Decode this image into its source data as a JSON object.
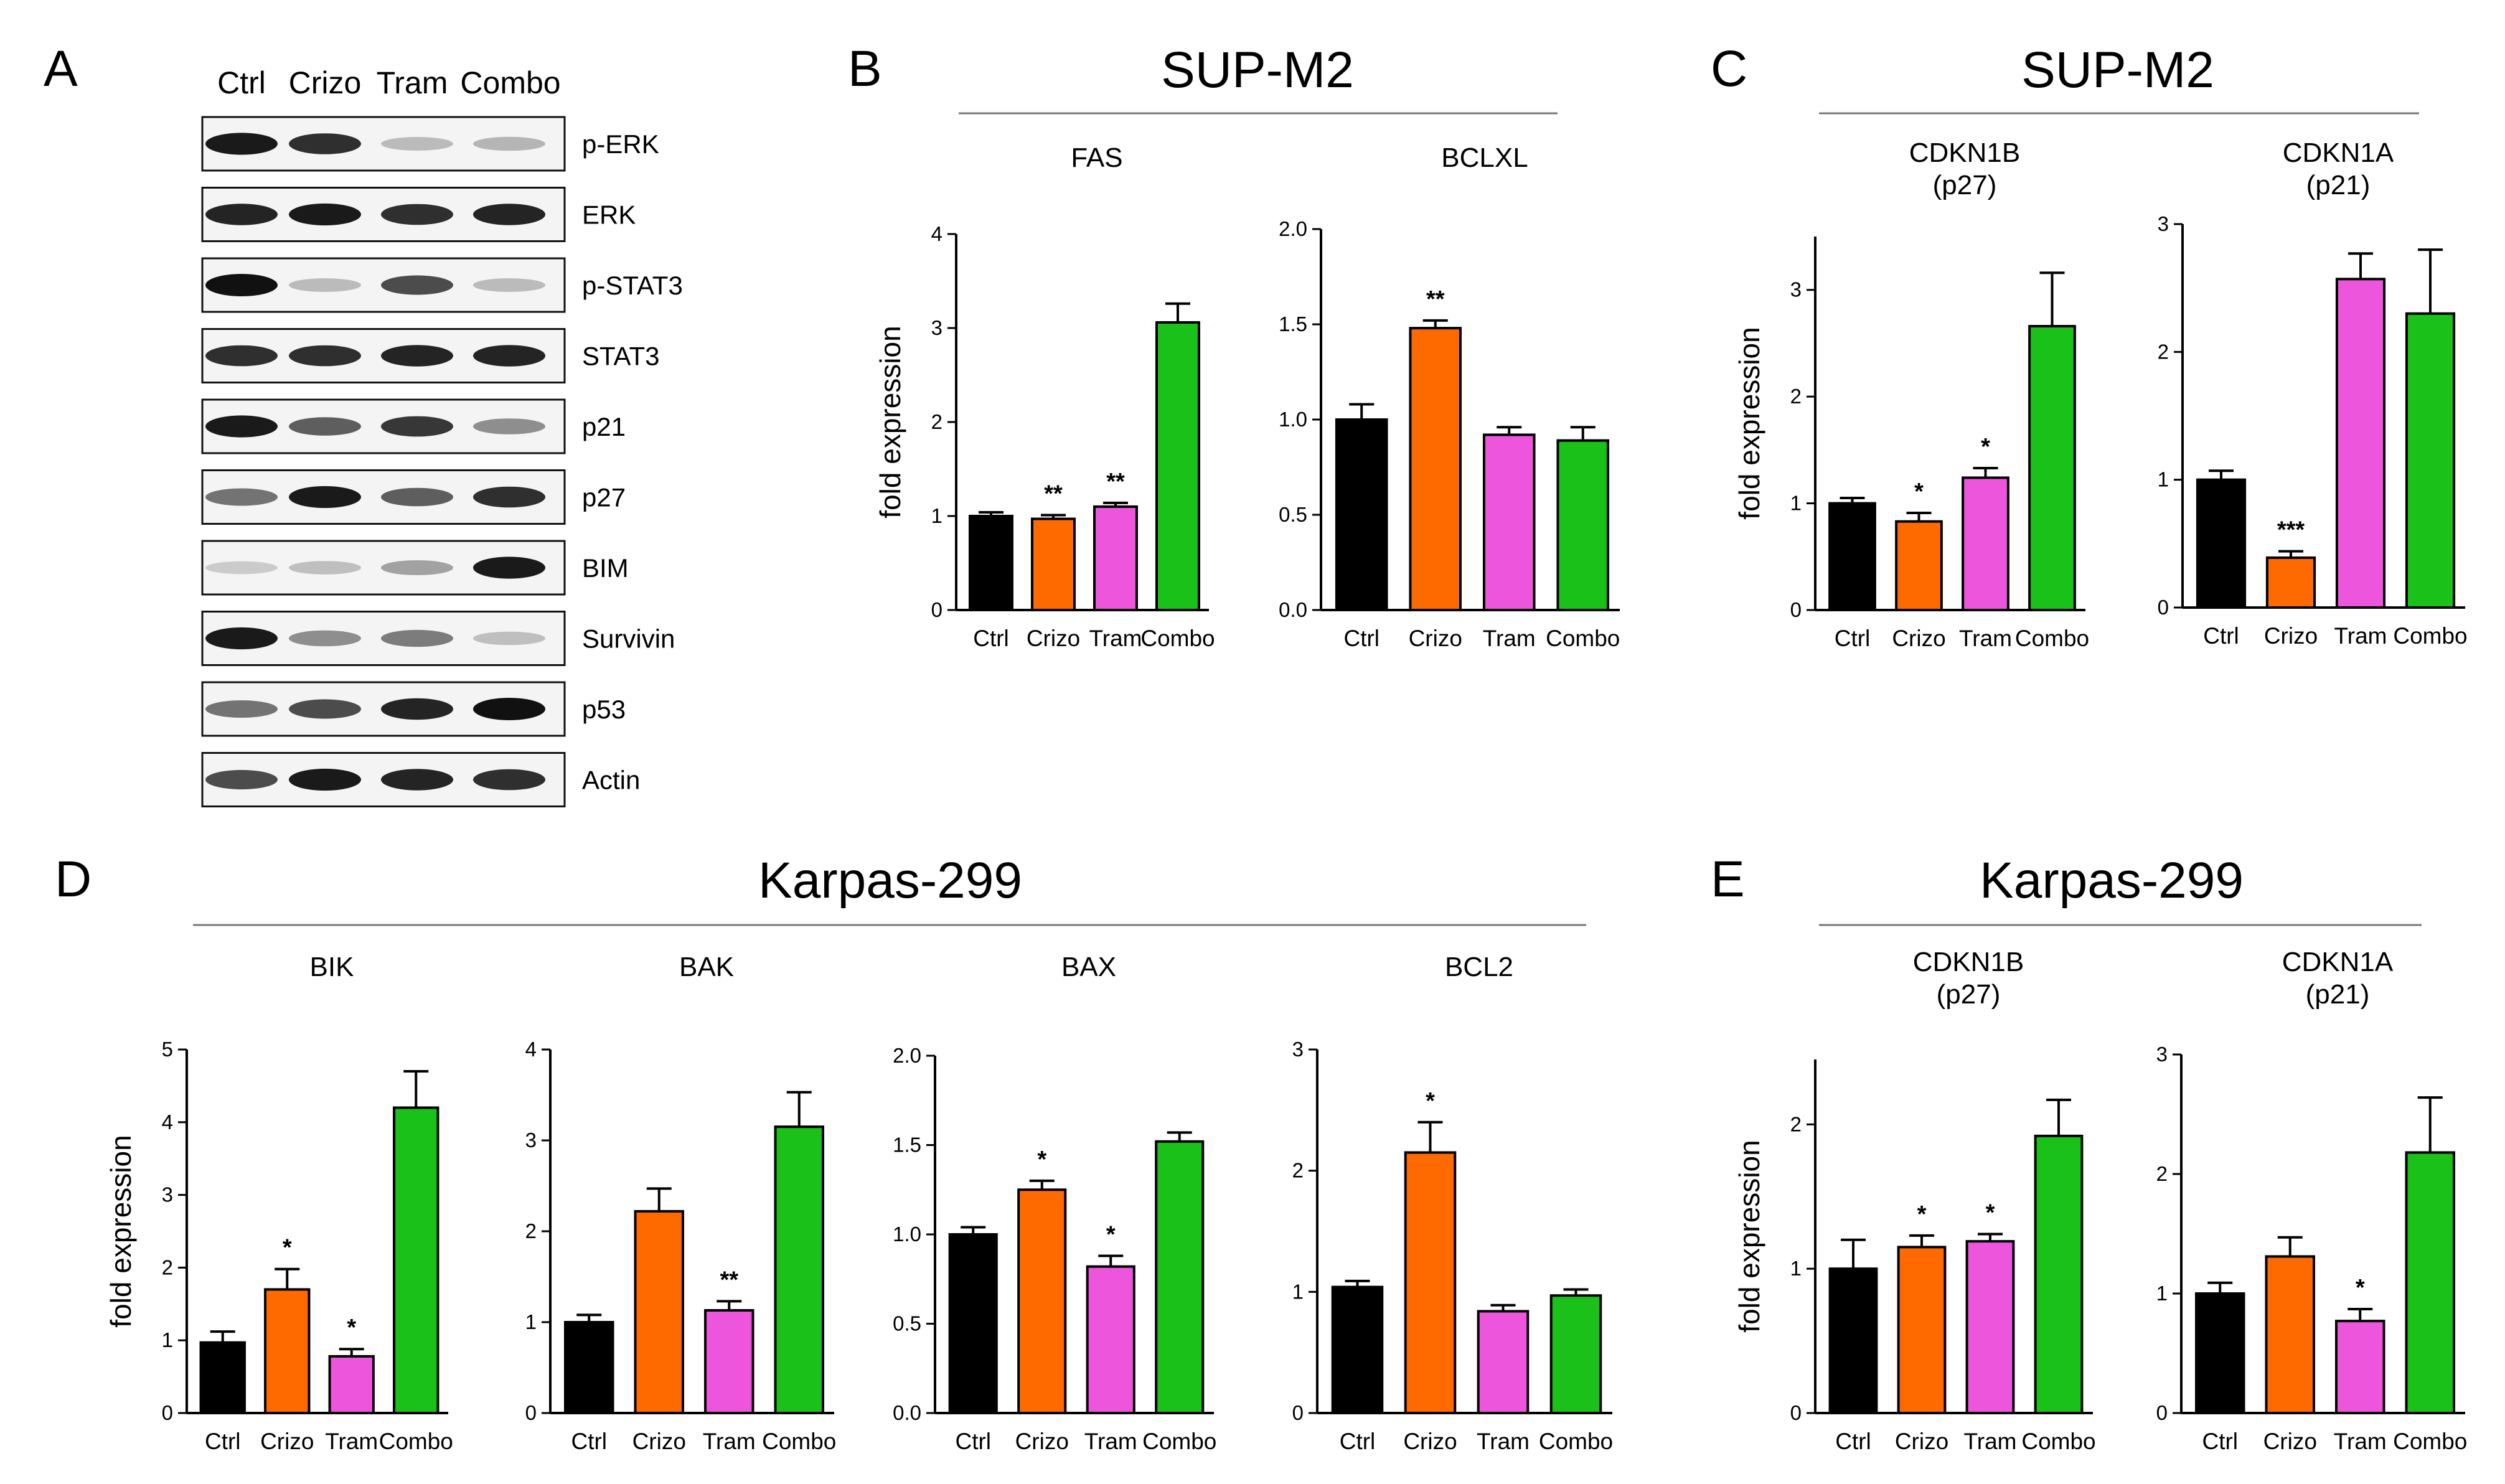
{
  "panels": {
    "A": "A",
    "B": "B",
    "C": "C",
    "D": "D",
    "E": "E"
  },
  "group_titles": {
    "B": "SUP-M2",
    "C": "SUP-M2",
    "D": "Karpas-299",
    "E": "Karpas-299"
  },
  "western_blot": {
    "lanes": [
      "Ctrl",
      "Crizo",
      "Tram",
      "Combo"
    ],
    "proteins": [
      {
        "label": "p-ERK",
        "intensity": [
          0.95,
          0.85,
          0.12,
          0.15
        ]
      },
      {
        "label": "ERK",
        "intensity": [
          0.9,
          0.95,
          0.85,
          0.9
        ]
      },
      {
        "label": "p-STAT3",
        "intensity": [
          1.0,
          0.12,
          0.7,
          0.12
        ]
      },
      {
        "label": "STAT3",
        "intensity": [
          0.85,
          0.85,
          0.9,
          0.9
        ]
      },
      {
        "label": "p21",
        "intensity": [
          0.95,
          0.6,
          0.8,
          0.35
        ]
      },
      {
        "label": "p27",
        "intensity": [
          0.5,
          0.95,
          0.6,
          0.85
        ]
      },
      {
        "label": "BIM",
        "intensity": [
          0.03,
          0.1,
          0.25,
          0.95
        ]
      },
      {
        "label": "Survivin",
        "intensity": [
          0.95,
          0.35,
          0.45,
          0.1
        ]
      },
      {
        "label": "p53",
        "intensity": [
          0.5,
          0.7,
          0.9,
          1.0
        ]
      },
      {
        "label": "Actin",
        "intensity": [
          0.7,
          0.95,
          0.9,
          0.85
        ]
      }
    ]
  },
  "colors": {
    "Ctrl": "#000000",
    "Crizo": "#ff6a00",
    "Tram": "#ee55dd",
    "Combo": "#19c119"
  },
  "ylabel": "fold expression",
  "chart_data": [
    {
      "group": "B",
      "type": "bar",
      "title": "FAS",
      "categories": [
        "Ctrl",
        "Crizo",
        "Tram",
        "Combo"
      ],
      "values": [
        1.0,
        0.97,
        1.1,
        3.06
      ],
      "errors": [
        0.04,
        0.04,
        0.04,
        0.2
      ],
      "ylim": [
        0,
        4
      ],
      "yticks": [
        "0",
        "1",
        "2",
        "3",
        "4"
      ],
      "sig": [
        "",
        "**",
        "**",
        ""
      ],
      "ylabel": true
    },
    {
      "group": "B",
      "type": "bar",
      "title": "BCLXL",
      "categories": [
        "Ctrl",
        "Crizo",
        "Tram",
        "Combo"
      ],
      "values": [
        1.0,
        1.48,
        0.92,
        0.89
      ],
      "errors": [
        0.08,
        0.04,
        0.04,
        0.07
      ],
      "ylim": [
        0,
        2.0
      ],
      "yticks": [
        "0.0",
        "0.5",
        "1.0",
        "1.5",
        "2.0"
      ],
      "sig": [
        "",
        "**",
        "",
        ""
      ],
      "ylabel": false
    },
    {
      "group": "C",
      "type": "bar",
      "title": "CDKN1B",
      "title2": "(p27)",
      "categories": [
        "Ctrl",
        "Crizo",
        "Tram",
        "Combo"
      ],
      "values": [
        1.0,
        0.83,
        1.24,
        2.66
      ],
      "errors": [
        0.05,
        0.08,
        0.09,
        0.5
      ],
      "ylim": [
        0,
        3.5
      ],
      "yticks": [
        "0",
        "1",
        "2",
        "3"
      ],
      "sig": [
        "",
        "*",
        "*",
        ""
      ],
      "ylabel": true
    },
    {
      "group": "C",
      "type": "bar",
      "title": "CDKN1A",
      "title2": "(p21)",
      "categories": [
        "Ctrl",
        "Crizo",
        "Tram",
        "Combo"
      ],
      "values": [
        1.0,
        0.39,
        2.57,
        2.3
      ],
      "errors": [
        0.07,
        0.05,
        0.2,
        0.5
      ],
      "ylim": [
        0,
        3
      ],
      "yticks": [
        "0",
        "1",
        "2",
        "3"
      ],
      "sig": [
        "",
        "***",
        "",
        ""
      ],
      "ylabel": false
    },
    {
      "group": "D",
      "type": "bar",
      "title": "BIK",
      "categories": [
        "Ctrl",
        "Crizo",
        "Tram",
        "Combo"
      ],
      "values": [
        0.97,
        1.7,
        0.78,
        4.2
      ],
      "errors": [
        0.15,
        0.28,
        0.1,
        0.5
      ],
      "ylim": [
        0,
        5
      ],
      "yticks": [
        "0",
        "1",
        "2",
        "3",
        "4",
        "5"
      ],
      "sig": [
        "",
        "*",
        "*",
        ""
      ],
      "ylabel": true
    },
    {
      "group": "D",
      "type": "bar",
      "title": "BAK",
      "categories": [
        "Ctrl",
        "Crizo",
        "Tram",
        "Combo"
      ],
      "values": [
        1.0,
        2.22,
        1.13,
        3.15
      ],
      "errors": [
        0.08,
        0.25,
        0.1,
        0.38
      ],
      "ylim": [
        0,
        4
      ],
      "yticks": [
        "0",
        "1",
        "2",
        "3",
        "4"
      ],
      "sig": [
        "",
        "",
        "**",
        ""
      ],
      "ylabel": false
    },
    {
      "group": "D",
      "type": "bar",
      "title": "BAX",
      "categories": [
        "Ctrl",
        "Crizo",
        "Tram",
        "Combo"
      ],
      "values": [
        1.0,
        1.25,
        0.82,
        1.52
      ],
      "errors": [
        0.04,
        0.05,
        0.06,
        0.05
      ],
      "ylim": [
        0,
        2.0
      ],
      "yticks": [
        "0.0",
        "0.5",
        "1.0",
        "1.5",
        "2.0"
      ],
      "sig": [
        "",
        "*",
        "*",
        ""
      ],
      "ylabel": false
    },
    {
      "group": "D",
      "type": "bar",
      "title": "BCL2",
      "categories": [
        "Ctrl",
        "Crizo",
        "Tram",
        "Combo"
      ],
      "values": [
        1.04,
        2.15,
        0.84,
        0.97
      ],
      "errors": [
        0.05,
        0.25,
        0.05,
        0.05
      ],
      "ylim": [
        0,
        3
      ],
      "yticks": [
        "0",
        "1",
        "2",
        "3"
      ],
      "sig": [
        "",
        "*",
        "",
        ""
      ],
      "ylabel": false
    },
    {
      "group": "E",
      "type": "bar",
      "title": "CDKN1B",
      "title2": "(p27)",
      "categories": [
        "Ctrl",
        "Crizo",
        "Tram",
        "Combo"
      ],
      "values": [
        1.0,
        1.15,
        1.19,
        1.92
      ],
      "errors": [
        0.2,
        0.08,
        0.05,
        0.25
      ],
      "ylim": [
        0,
        2.45
      ],
      "yticks": [
        "0",
        "1",
        "2"
      ],
      "sig": [
        "",
        "*",
        "*",
        ""
      ],
      "ylabel": true
    },
    {
      "group": "E",
      "type": "bar",
      "title": "CDKN1A",
      "title2": "(p21)",
      "categories": [
        "Ctrl",
        "Crizo",
        "Tram",
        "Combo"
      ],
      "values": [
        1.0,
        1.31,
        0.77,
        2.18
      ],
      "errors": [
        0.09,
        0.16,
        0.1,
        0.46
      ],
      "ylim": [
        0,
        3
      ],
      "yticks": [
        "0",
        "1",
        "2",
        "3"
      ],
      "sig": [
        "",
        "",
        "*",
        ""
      ],
      "ylabel": false
    }
  ]
}
